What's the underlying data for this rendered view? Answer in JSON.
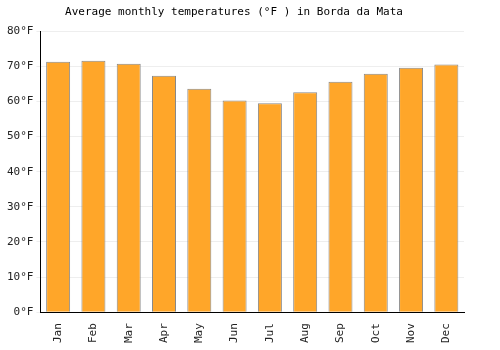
{
  "chart_data": {
    "type": "bar",
    "title": "Average monthly temperatures (°F ) in Borda da Mata",
    "categories": [
      "Jan",
      "Feb",
      "Mar",
      "Apr",
      "May",
      "Jun",
      "Jul",
      "Aug",
      "Sep",
      "Oct",
      "Nov",
      "Dec"
    ],
    "values": [
      71.3,
      71.6,
      70.7,
      67.3,
      63.6,
      60.3,
      59.5,
      62.6,
      65.6,
      67.9,
      69.6,
      70.5
    ],
    "color": "#ffa629",
    "ylim": [
      0,
      80
    ],
    "yticks": [
      {
        "value": 0,
        "label": "0°F"
      },
      {
        "value": 10,
        "label": "10°F"
      },
      {
        "value": 20,
        "label": "20°F"
      },
      {
        "value": 30,
        "label": "30°F"
      },
      {
        "value": 40,
        "label": "40°F"
      },
      {
        "value": 50,
        "label": "50°F"
      },
      {
        "value": 60,
        "label": "60°F"
      },
      {
        "value": 70,
        "label": "70°F"
      },
      {
        "value": 80,
        "label": "80°F"
      }
    ],
    "grid": true
  }
}
